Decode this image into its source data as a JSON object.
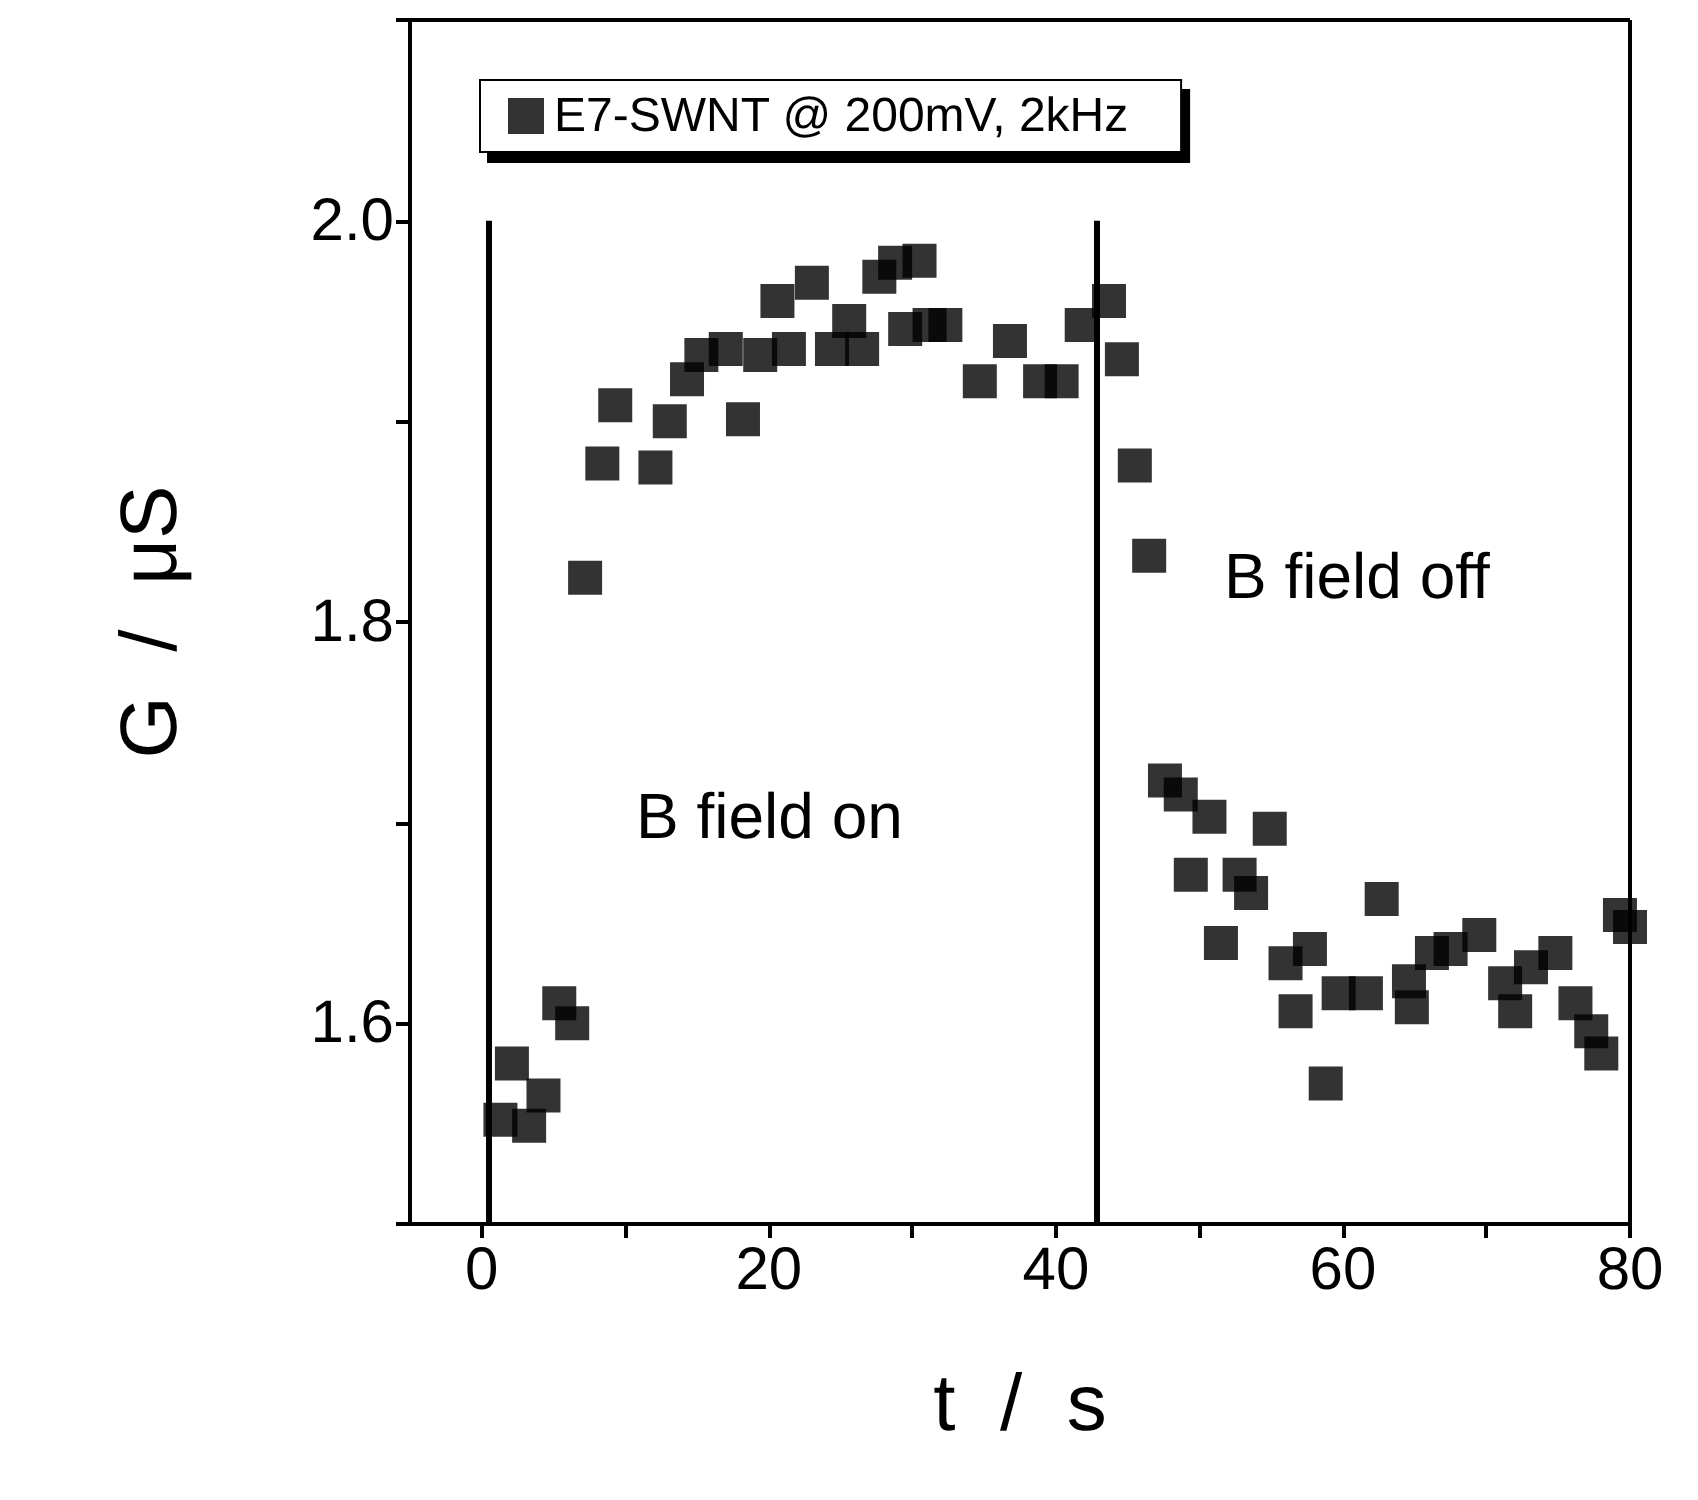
{
  "chart_data": {
    "type": "scatter",
    "xlabel": "t  /  s",
    "ylabel": "G  /  μS",
    "xlim": [
      -5,
      80
    ],
    "ylim": [
      1.5,
      2.1
    ],
    "xticks": [
      0,
      {
        "value": 10,
        "label": null
      },
      20,
      {
        "value": 30,
        "label": null
      },
      40,
      {
        "value": 50,
        "label": null
      },
      60,
      {
        "value": 70,
        "label": null
      },
      80
    ],
    "yticks": [
      {
        "value": 1.5,
        "label": null
      },
      1.6,
      {
        "value": 1.7,
        "label": null
      },
      1.8,
      {
        "value": 1.9,
        "label": null
      },
      {
        "value": 2.0,
        "label": "2.0"
      },
      {
        "value": 2.1,
        "label": null
      }
    ],
    "grid": false,
    "legend": "top",
    "marker": "square",
    "annotations": [
      "B field on",
      "B field off"
    ],
    "ref_lines": [
      {
        "axis": "x",
        "value": 0.5,
        "color": "#000000"
      },
      {
        "axis": "x",
        "value": 42.8,
        "color": "#000000"
      }
    ],
    "series": [
      {
        "name": "E7-SWNT @ 200mV, 2kHz",
        "color": "#000000",
        "x": [
          1.3,
          2.1,
          3.3,
          4.3,
          5.4,
          6.3,
          7.2,
          8.4,
          9.3,
          12.1,
          13.1,
          14.3,
          15.3,
          17.0,
          18.2,
          19.4,
          20.6,
          21.4,
          23.0,
          24.4,
          25.6,
          26.5,
          27.7,
          28.8,
          29.5,
          30.5,
          31.2,
          32.3,
          34.7,
          36.8,
          38.9,
          40.4,
          41.8,
          43.7,
          44.6,
          45.5,
          46.5,
          47.6,
          48.7,
          49.4,
          50.7,
          51.5,
          52.8,
          53.6,
          54.9,
          56.0,
          56.7,
          57.7,
          58.8,
          59.7,
          61.6,
          62.7,
          64.6,
          64.8,
          66.2,
          67.5,
          69.5,
          71.3,
          72.0,
          73.1,
          74.8,
          76.2,
          77.3,
          78.0,
          79.3,
          80.0
        ],
        "values": [
          1.552,
          1.58,
          1.549,
          1.564,
          1.61,
          1.6,
          1.822,
          1.879,
          1.908,
          1.877,
          1.9,
          1.921,
          1.933,
          1.936,
          1.901,
          1.933,
          1.96,
          1.936,
          1.969,
          1.936,
          1.95,
          1.936,
          1.972,
          1.979,
          1.946,
          1.98,
          1.948,
          1.948,
          1.92,
          1.94,
          1.92,
          1.92,
          1.948,
          1.96,
          1.931,
          1.878,
          1.833,
          1.721,
          1.714,
          1.674,
          1.703,
          1.64,
          1.674,
          1.665,
          1.697,
          1.63,
          1.606,
          1.637,
          1.57,
          1.615,
          1.615,
          1.662,
          1.621,
          1.608,
          1.635,
          1.637,
          1.644,
          1.62,
          1.606,
          1.628,
          1.635,
          1.61,
          1.596,
          1.585,
          1.654,
          1.648
        ]
      }
    ]
  }
}
